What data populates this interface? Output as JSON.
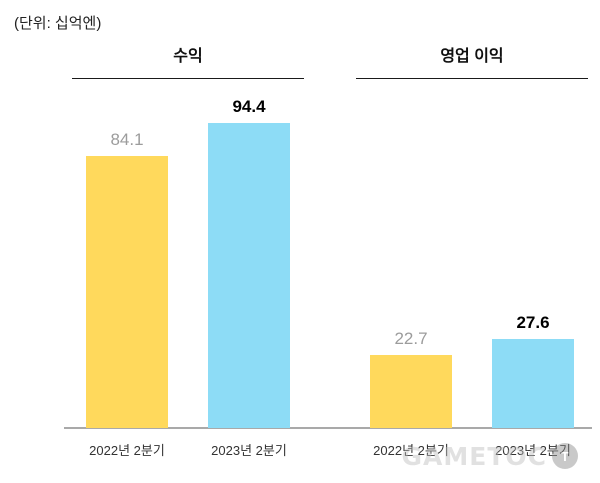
{
  "unit_label": "(단위: 십억엔)",
  "watermark": {
    "text": "GAMETOC",
    "badge": "T"
  },
  "chart_data": {
    "type": "bar",
    "title": "",
    "unit": "(단위: 십억엔)",
    "grid": false,
    "legend": false,
    "ylim": [
      0,
      100
    ],
    "groups": [
      {
        "title": "수익",
        "categories": [
          "2022년 2분기",
          "2023년 2분기"
        ],
        "values": [
          84.1,
          94.4
        ]
      },
      {
        "title": "영업 이익",
        "categories": [
          "2022년 2분기",
          "2023년 2분기"
        ],
        "values": [
          22.7,
          27.6
        ]
      }
    ],
    "series_colors": [
      "#FFD95C",
      "#8DDCF6"
    ],
    "value_label_colors": [
      "#9c9c9c",
      "#000000"
    ]
  }
}
